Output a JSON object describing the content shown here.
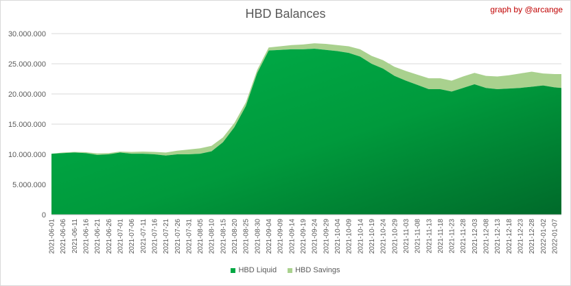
{
  "title": "HBD Balances",
  "credit": "graph by @arcange",
  "colors": {
    "liquid": "#00a843",
    "liquid_dark": "#006a2a",
    "savings": "#a9d18e",
    "grid": "#d9d9d9",
    "text": "#595959",
    "credit": "#c00000"
  },
  "chart_data": {
    "type": "area",
    "stacked": true,
    "title": "HBD Balances",
    "xlabel": "",
    "ylabel": "",
    "ylim": [
      0,
      30000000
    ],
    "yticks": [
      0,
      5000000,
      10000000,
      15000000,
      20000000,
      25000000,
      30000000
    ],
    "ytick_labels": [
      "0",
      "5.000.000",
      "10.000.000",
      "15.000.000",
      "20.000.000",
      "25.000.000",
      "30.000.000"
    ],
    "grid": true,
    "legend_position": "bottom",
    "x": [
      "2021-06-01",
      "2021-06-06",
      "2021-06-11",
      "2021-06-16",
      "2021-06-21",
      "2021-06-26",
      "2021-07-01",
      "2021-07-06",
      "2021-07-11",
      "2021-07-16",
      "2021-07-21",
      "2021-07-26",
      "2021-07-31",
      "2021-08-05",
      "2021-08-10",
      "2021-08-15",
      "2021-08-20",
      "2021-08-25",
      "2021-08-30",
      "2021-09-04",
      "2021-09-09",
      "2021-09-14",
      "2021-09-19",
      "2021-09-24",
      "2021-09-29",
      "2021-10-04",
      "2021-10-09",
      "2021-10-14",
      "2021-10-19",
      "2021-10-24",
      "2021-10-29",
      "2021-11-03",
      "2021-11-08",
      "2021-11-13",
      "2021-11-18",
      "2021-11-23",
      "2021-11-28",
      "2021-12-03",
      "2021-12-08",
      "2021-12-13",
      "2021-12-18",
      "2021-12-23",
      "2021-12-28",
      "2022-01-02",
      "2022-01-07",
      "2022-01-10"
    ],
    "xtick_labels": [
      "2021-06-01",
      "2021-06-06",
      "2021-06-11",
      "2021-06-16",
      "2021-06-21",
      "2021-06-26",
      "2021-07-01",
      "2021-07-06",
      "2021-07-11",
      "2021-07-16",
      "2021-07-21",
      "2021-07-26",
      "2021-07-31",
      "2021-08-05",
      "2021-08-10",
      "2021-08-15",
      "2021-08-20",
      "2021-08-25",
      "2021-08-30",
      "2021-09-04",
      "2021-09-09",
      "2021-09-14",
      "2021-09-19",
      "2021-09-24",
      "2021-09-29",
      "2021-10-04",
      "2021-10-09",
      "2021-10-14",
      "2021-10-19",
      "2021-10-24",
      "2021-10-29",
      "2021-11-03",
      "2021-11-08",
      "2021-11-13",
      "2021-11-18",
      "2021-11-23",
      "2021-11-28",
      "2021-12-03",
      "2021-12-08",
      "2021-12-13",
      "2021-12-18",
      "2021-12-23",
      "2021-12-28",
      "2022-01-02",
      "2022-01-07"
    ],
    "series": [
      {
        "name": "HBD Liquid",
        "values": [
          10100000,
          10200000,
          10300000,
          10200000,
          9900000,
          10000000,
          10300000,
          10100000,
          10100000,
          10000000,
          9800000,
          10000000,
          10000000,
          10100000,
          10500000,
          12000000,
          14500000,
          18000000,
          23500000,
          27200000,
          27300000,
          27400000,
          27400000,
          27500000,
          27300000,
          27100000,
          26800000,
          26200000,
          25000000,
          24200000,
          23000000,
          22200000,
          21500000,
          20800000,
          20800000,
          20400000,
          21000000,
          21600000,
          21000000,
          20800000,
          20900000,
          21000000,
          21200000,
          21400000,
          21100000,
          21000000
        ]
      },
      {
        "name": "HBD Savings",
        "values": [
          0,
          100000,
          100000,
          150000,
          250000,
          200000,
          150000,
          300000,
          350000,
          400000,
          500000,
          600000,
          800000,
          900000,
          900000,
          800000,
          700000,
          600000,
          500000,
          500000,
          600000,
          700000,
          800000,
          900000,
          1000000,
          1000000,
          1100000,
          1200000,
          1300000,
          1400000,
          1500000,
          1600000,
          1700000,
          1800000,
          1800000,
          1800000,
          1900000,
          1900000,
          2000000,
          2100000,
          2200000,
          2400000,
          2500000,
          2000000,
          2200000,
          2300000
        ]
      }
    ]
  }
}
